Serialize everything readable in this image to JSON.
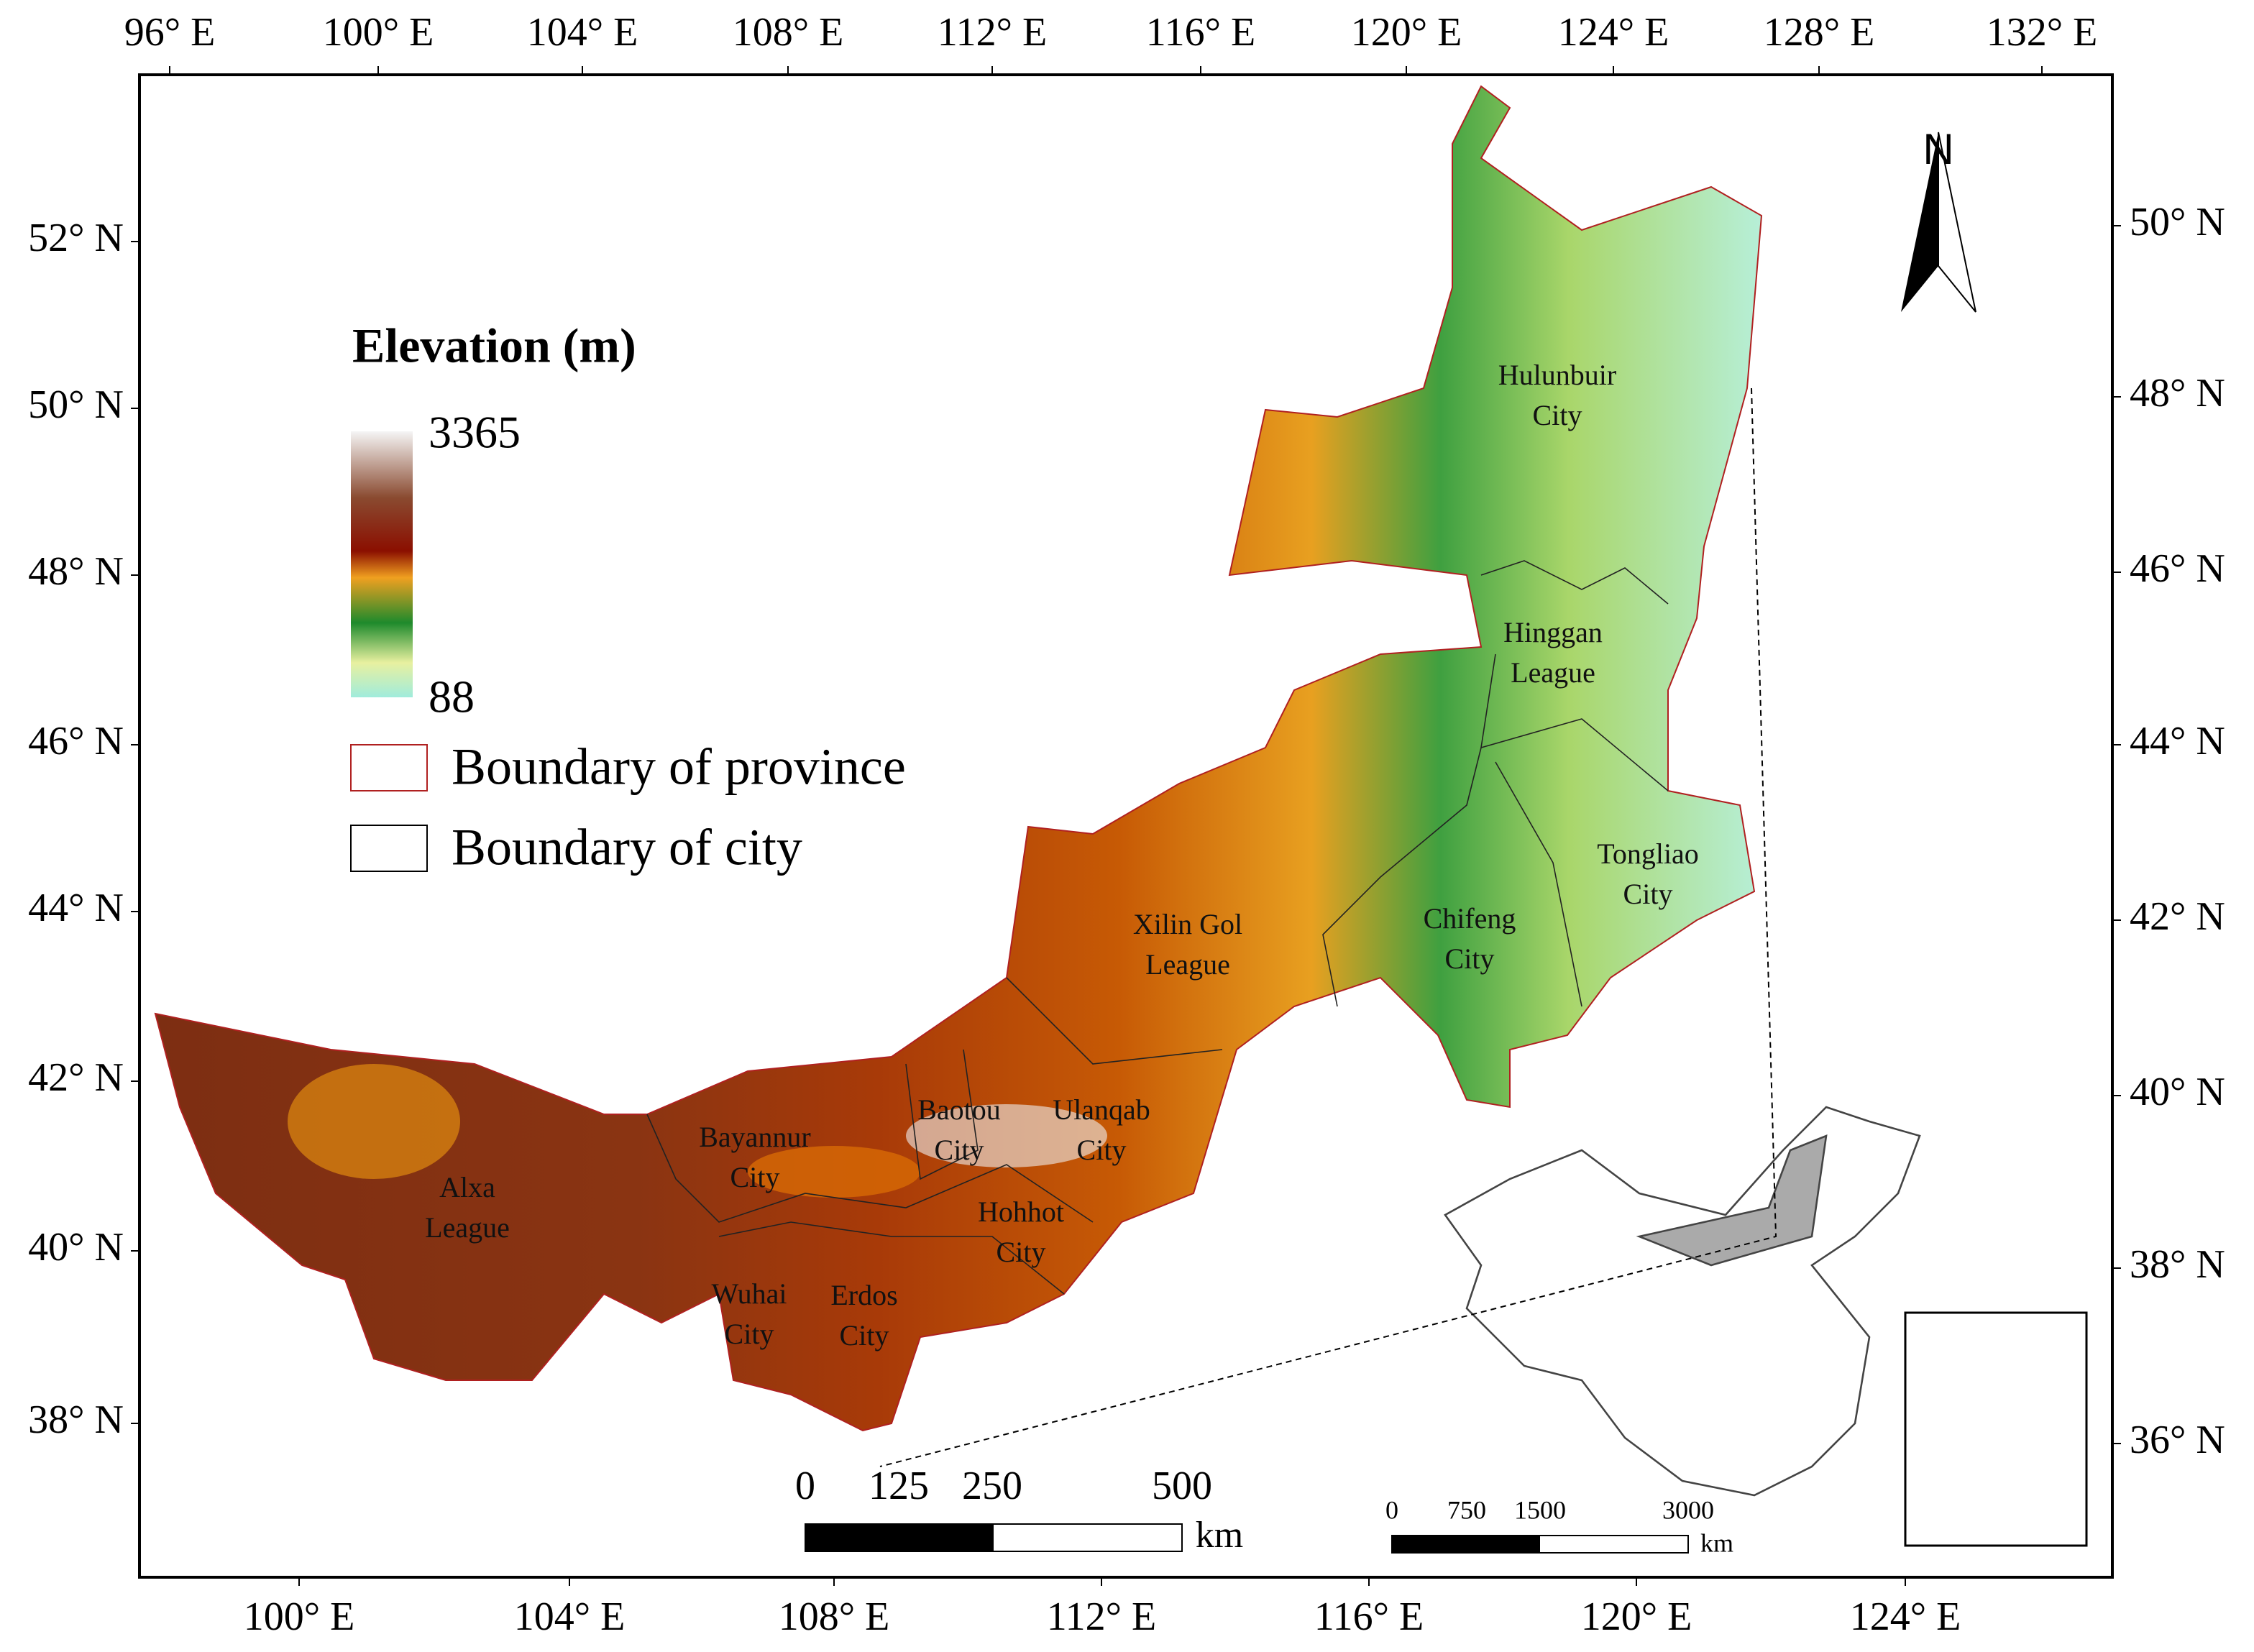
{
  "map": {
    "top_labels": [
      "96° E",
      "100° E",
      "104° E",
      "108° E",
      "112° E",
      "116° E",
      "120° E",
      "124° E",
      "128° E",
      "132° E"
    ],
    "bottom_labels": [
      "100° E",
      "104° E",
      "108° E",
      "112° E",
      "116° E",
      "120° E",
      "124° E"
    ],
    "left_labels": [
      "52° N",
      "50° N",
      "48° N",
      "46° N",
      "44° N",
      "42° N",
      "40° N",
      "38° N"
    ],
    "right_labels": [
      "50° N",
      "48° N",
      "46° N",
      "44° N",
      "42° N",
      "40° N",
      "38° N",
      "36° N"
    ],
    "north": "N",
    "legend": {
      "title": "Elevation (m)",
      "max": 3365,
      "min": 88,
      "province": "Boundary of province",
      "city": "Boundary of city"
    },
    "regions": [
      {
        "lines": [
          "Hulunbuir",
          "City"
        ]
      },
      {
        "lines": [
          "Hinggan",
          "League"
        ]
      },
      {
        "lines": [
          "Tongliao",
          "City"
        ]
      },
      {
        "lines": [
          "Chifeng",
          "City"
        ]
      },
      {
        "lines": [
          "Xilin Gol",
          "League"
        ]
      },
      {
        "lines": [
          "Ulanqab",
          "City"
        ]
      },
      {
        "lines": [
          "Baotou",
          "City"
        ]
      },
      {
        "lines": [
          "Bayannur",
          "City"
        ]
      },
      {
        "lines": [
          "Alxa",
          "League"
        ]
      },
      {
        "lines": [
          "Hohhot",
          "City"
        ]
      },
      {
        "lines": [
          "Wuhai",
          "City"
        ]
      },
      {
        "lines": [
          "Erdos",
          "City"
        ]
      }
    ],
    "scale_main": {
      "ticks": [
        "0",
        "125",
        "250",
        "500"
      ],
      "unit": "km"
    },
    "scale_inset": {
      "ticks": [
        "0",
        "750",
        "1500",
        "3000"
      ],
      "unit": "km"
    }
  }
}
